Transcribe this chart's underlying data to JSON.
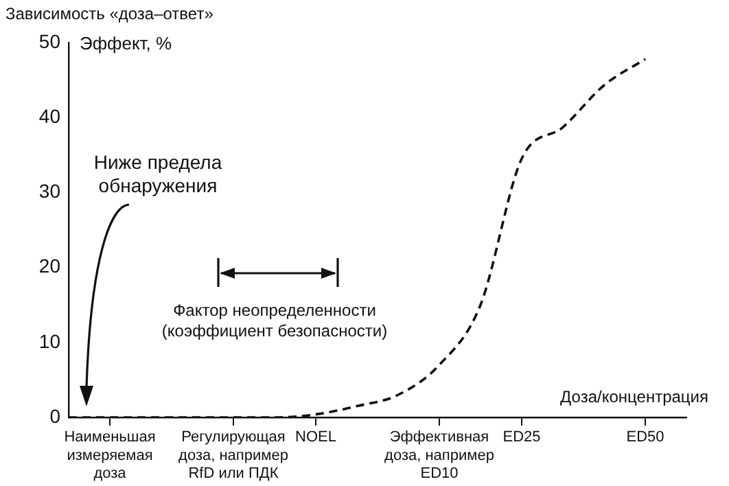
{
  "chart_data": {
    "type": "line",
    "title": "Зависимость «доза–ответ»",
    "ylabel": "Эффект, %",
    "xlabel": "Доза/концентрация",
    "categories": [
      null,
      "Наименьшая\nизмеряемая\nдоза",
      null,
      null,
      "Регулирующая\nдоза, например\nRfD или ПДК",
      null,
      "NOEL",
      null,
      null,
      "Эффективная\nдоза, например\nED10",
      null,
      "ED25",
      null,
      null,
      "ED50",
      null
    ],
    "series": [
      {
        "color": "#111111",
        "values": [
          0,
          0,
          0,
          0,
          0,
          0,
          0.4,
          1.5,
          3,
          7,
          15,
          34.5,
          38.7,
          44.3,
          47.8,
          null
        ]
      }
    ],
    "ylim": [
      0,
      50
    ],
    "yticks": [
      0,
      10,
      20,
      30,
      40,
      50
    ],
    "grid": false,
    "legend": false,
    "marker": "none",
    "line_style": "dashed",
    "annotations": [
      "Ниже предела\nобнаружения",
      "Фактор неопределенности\n(коэффициент безопасности)"
    ]
  }
}
